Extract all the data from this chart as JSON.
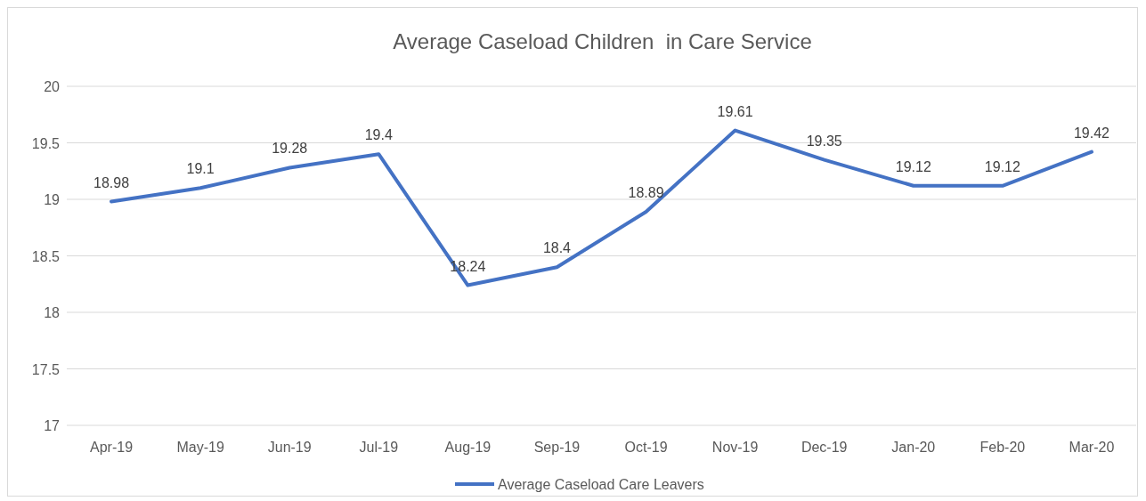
{
  "chart_data": {
    "type": "line",
    "title": "Average Caseload Children  in Care Service",
    "categories": [
      "Apr-19",
      "May-19",
      "Jun-19",
      "Jul-19",
      "Aug-19",
      "Sep-19",
      "Oct-19",
      "Nov-19",
      "Dec-19",
      "Jan-20",
      "Feb-20",
      "Mar-20"
    ],
    "series": [
      {
        "name": "Average Caseload Care Leavers",
        "color": "#4472c4",
        "values": [
          18.98,
          19.1,
          19.28,
          19.4,
          18.24,
          18.4,
          18.89,
          19.61,
          19.35,
          19.12,
          19.12,
          19.42
        ]
      }
    ],
    "ylim": [
      17,
      20
    ],
    "yticks": [
      17,
      17.5,
      18,
      18.5,
      19,
      19.5,
      20
    ],
    "grid": "y",
    "legend": "bottom",
    "data_labels": true,
    "marker": "none",
    "line_style": "solid"
  }
}
